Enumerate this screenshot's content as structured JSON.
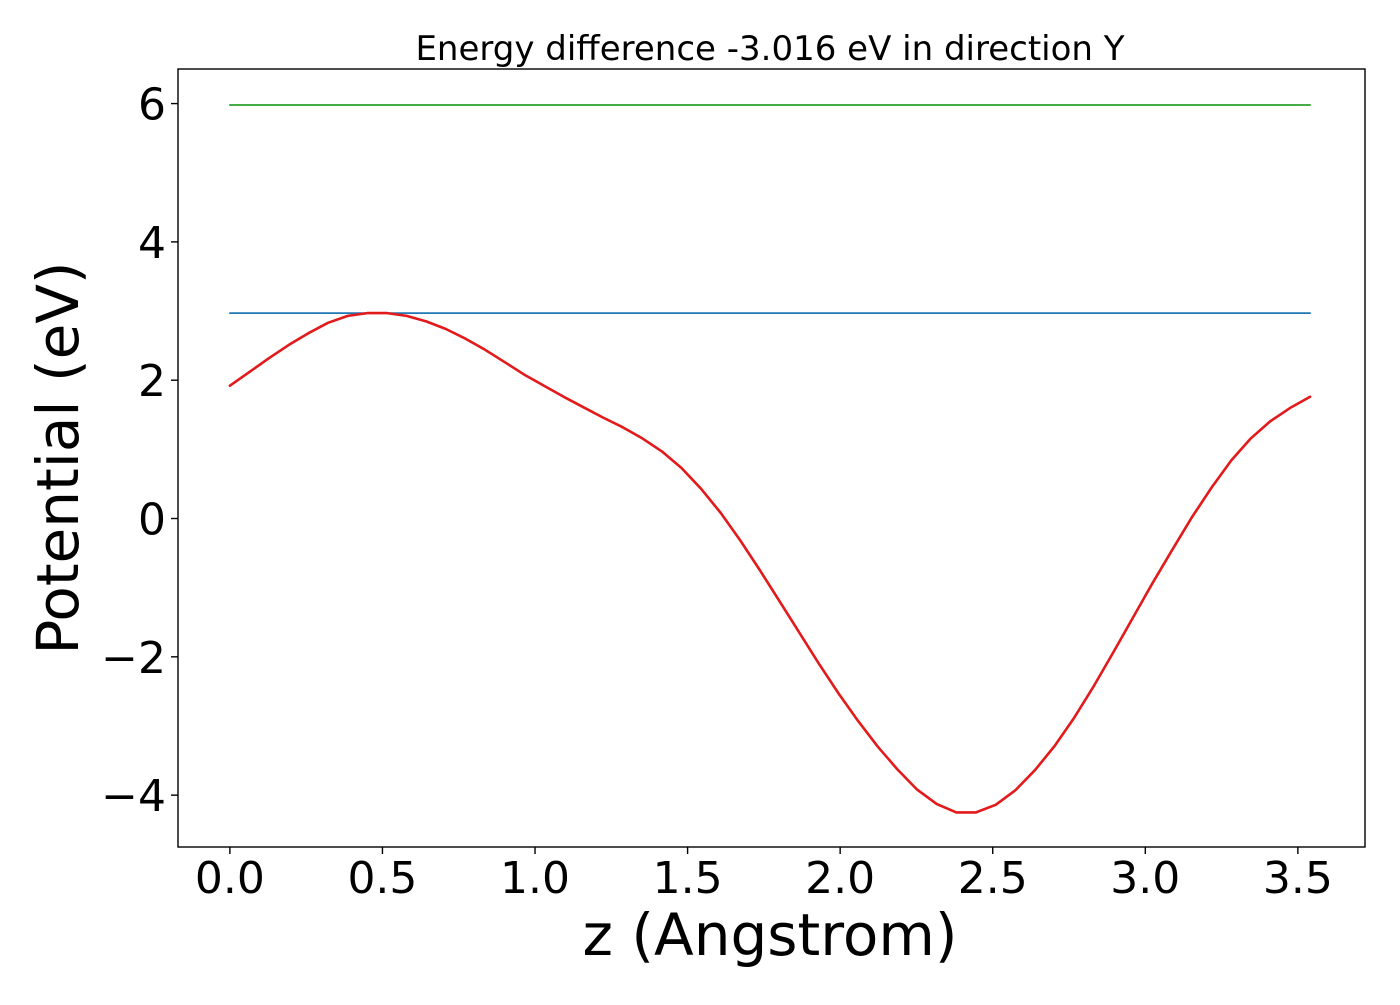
{
  "chart_data": {
    "type": "line",
    "title": "Energy difference -3.016 eV in direction Y",
    "xlabel": "z (Angstrom)",
    "ylabel": "Potential (eV)",
    "xlim": [
      -0.17,
      3.72
    ],
    "ylim": [
      -4.75,
      6.5
    ],
    "xticks": [
      0.0,
      0.5,
      1.0,
      1.5,
      2.0,
      2.5,
      3.0,
      3.5
    ],
    "xtick_labels": [
      "0.0",
      "0.5",
      "1.0",
      "1.5",
      "2.0",
      "2.5",
      "3.0",
      "3.5"
    ],
    "yticks": [
      -4,
      -2,
      0,
      2,
      4,
      6
    ],
    "ytick_labels": [
      "−4",
      "−2",
      "0",
      "2",
      "4",
      "6"
    ],
    "grid": false,
    "legend": "none",
    "series": [
      {
        "color": "#2ca02c",
        "x": [
          0.0,
          3.54
        ],
        "y": [
          5.98,
          5.98
        ]
      },
      {
        "color": "#1f77b4",
        "x": [
          0.0,
          3.54
        ],
        "y": [
          2.97,
          2.97
        ]
      },
      {
        "color": "#e31a1c",
        "x": [
          0.0,
          0.0643,
          0.1287,
          0.193,
          0.2574,
          0.3217,
          0.3861,
          0.4504,
          0.5148,
          0.5791,
          0.6435,
          0.7078,
          0.7722,
          0.8365,
          0.9009,
          0.9652,
          1.0296,
          1.0939,
          1.1583,
          1.2226,
          1.287,
          1.3513,
          1.4157,
          1.48,
          1.5444,
          1.6087,
          1.6731,
          1.7374,
          1.8018,
          1.8661,
          1.9305,
          1.9948,
          2.0592,
          2.1235,
          2.1879,
          2.2522,
          2.3166,
          2.3809,
          2.4453,
          2.5096,
          2.574,
          2.6383,
          2.7027,
          2.767,
          2.8314,
          2.8957,
          2.9601,
          3.0244,
          3.0888,
          3.1531,
          3.2175,
          3.2818,
          3.3462,
          3.4105,
          3.4749,
          3.54
        ],
        "y": [
          1.92,
          2.12,
          2.32,
          2.51,
          2.68,
          2.83,
          2.93,
          2.97,
          2.97,
          2.93,
          2.85,
          2.74,
          2.6,
          2.44,
          2.26,
          2.08,
          1.92,
          1.76,
          1.61,
          1.46,
          1.32,
          1.16,
          0.97,
          0.73,
          0.43,
          0.08,
          -0.32,
          -0.75,
          -1.2,
          -1.65,
          -2.1,
          -2.53,
          -2.93,
          -3.3,
          -3.63,
          -3.92,
          -4.13,
          -4.25,
          -4.25,
          -4.14,
          -3.93,
          -3.64,
          -3.29,
          -2.88,
          -2.42,
          -1.93,
          -1.43,
          -0.93,
          -0.45,
          0.02,
          0.45,
          0.84,
          1.16,
          1.41,
          1.6,
          1.76
        ]
      }
    ]
  }
}
